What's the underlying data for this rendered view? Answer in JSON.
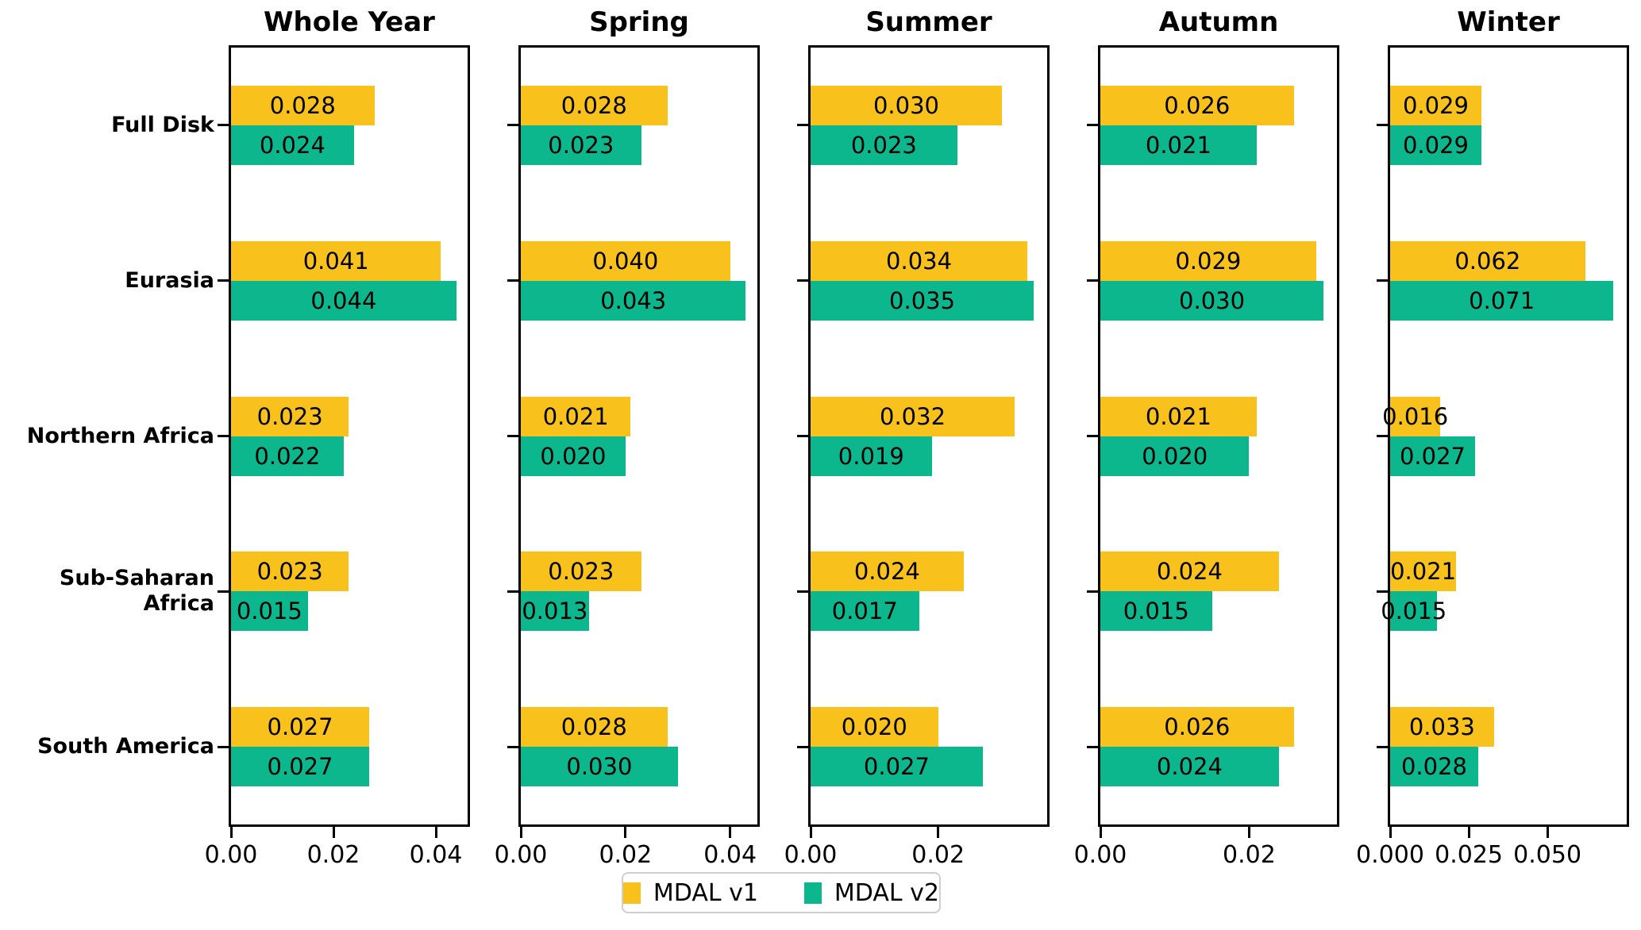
{
  "chart_data": {
    "type": "bar",
    "orientation": "horizontal",
    "grid": false,
    "categories": [
      "Full Disk",
      "Eurasia",
      "Northern Africa",
      "Sub-Saharan Africa",
      "South America"
    ],
    "series": [
      "MDAL v1",
      "MDAL v2"
    ],
    "colors": {
      "mdal_v1": "#F9C11B",
      "mdal_v2": "#0CB78D"
    },
    "legend": {
      "position": "lower center",
      "entries": [
        {
          "label": "MDAL v1",
          "color_key": "mdal_v1"
        },
        {
          "label": "MDAL v2",
          "color_key": "mdal_v2"
        }
      ]
    },
    "panels": [
      {
        "title": "Whole Year",
        "xmax": 0.0462,
        "xticks": [
          "0.00",
          "0.02",
          "0.04"
        ],
        "xtick_values": [
          0,
          0.02,
          0.04
        ],
        "v1": [
          0.028,
          0.041,
          0.023,
          0.023,
          0.027
        ],
        "v2": [
          0.024,
          0.044,
          0.022,
          0.015,
          0.027
        ],
        "labels_v1": [
          "0.028",
          "0.041",
          "0.023",
          "0.023",
          "0.027"
        ],
        "labels_v2": [
          "0.024",
          "0.044",
          "0.022",
          "0.015",
          "0.027"
        ]
      },
      {
        "title": "Spring",
        "xmax": 0.0452,
        "xticks": [
          "0.00",
          "0.02",
          "0.04"
        ],
        "xtick_values": [
          0,
          0.02,
          0.04
        ],
        "v1": [
          0.028,
          0.04,
          0.021,
          0.023,
          0.028
        ],
        "v2": [
          0.023,
          0.043,
          0.02,
          0.013,
          0.03
        ],
        "labels_v1": [
          "0.028",
          "0.040",
          "0.021",
          "0.023",
          "0.028"
        ],
        "labels_v2": [
          "0.023",
          "0.043",
          "0.020",
          "0.013",
          "0.030"
        ]
      },
      {
        "title": "Summer",
        "xmax": 0.0371,
        "xticks": [
          "0.00",
          "0.02"
        ],
        "xtick_values": [
          0,
          0.02
        ],
        "v1": [
          0.03,
          0.034,
          0.032,
          0.024,
          0.02
        ],
        "v2": [
          0.023,
          0.035,
          0.019,
          0.017,
          0.027
        ],
        "labels_v1": [
          "0.030",
          "0.034",
          "0.032",
          "0.024",
          "0.020"
        ],
        "labels_v2": [
          "0.023",
          "0.035",
          "0.019",
          "0.017",
          "0.027"
        ]
      },
      {
        "title": "Autumn",
        "xmax": 0.0318,
        "xticks": [
          "0.00",
          "0.02"
        ],
        "xtick_values": [
          0,
          0.02
        ],
        "v1": [
          0.026,
          0.029,
          0.021,
          0.024,
          0.026
        ],
        "v2": [
          0.021,
          0.03,
          0.02,
          0.015,
          0.024
        ],
        "labels_v1": [
          "0.026",
          "0.029",
          "0.021",
          "0.024",
          "0.026"
        ],
        "labels_v2": [
          "0.021",
          "0.030",
          "0.020",
          "0.015",
          "0.024"
        ]
      },
      {
        "title": "Winter",
        "xmax": 0.0752,
        "xticks": [
          "0.000",
          "0.025",
          "0.050"
        ],
        "xtick_values": [
          0,
          0.025,
          0.05
        ],
        "v1": [
          0.029,
          0.062,
          0.016,
          0.021,
          0.033
        ],
        "v2": [
          0.029,
          0.071,
          0.027,
          0.015,
          0.028
        ],
        "labels_v1": [
          "0.029",
          "0.062",
          "0.016",
          "0.021",
          "0.033"
        ],
        "labels_v2": [
          "0.029",
          "0.071",
          "0.027",
          "0.015",
          "0.028"
        ]
      }
    ]
  }
}
